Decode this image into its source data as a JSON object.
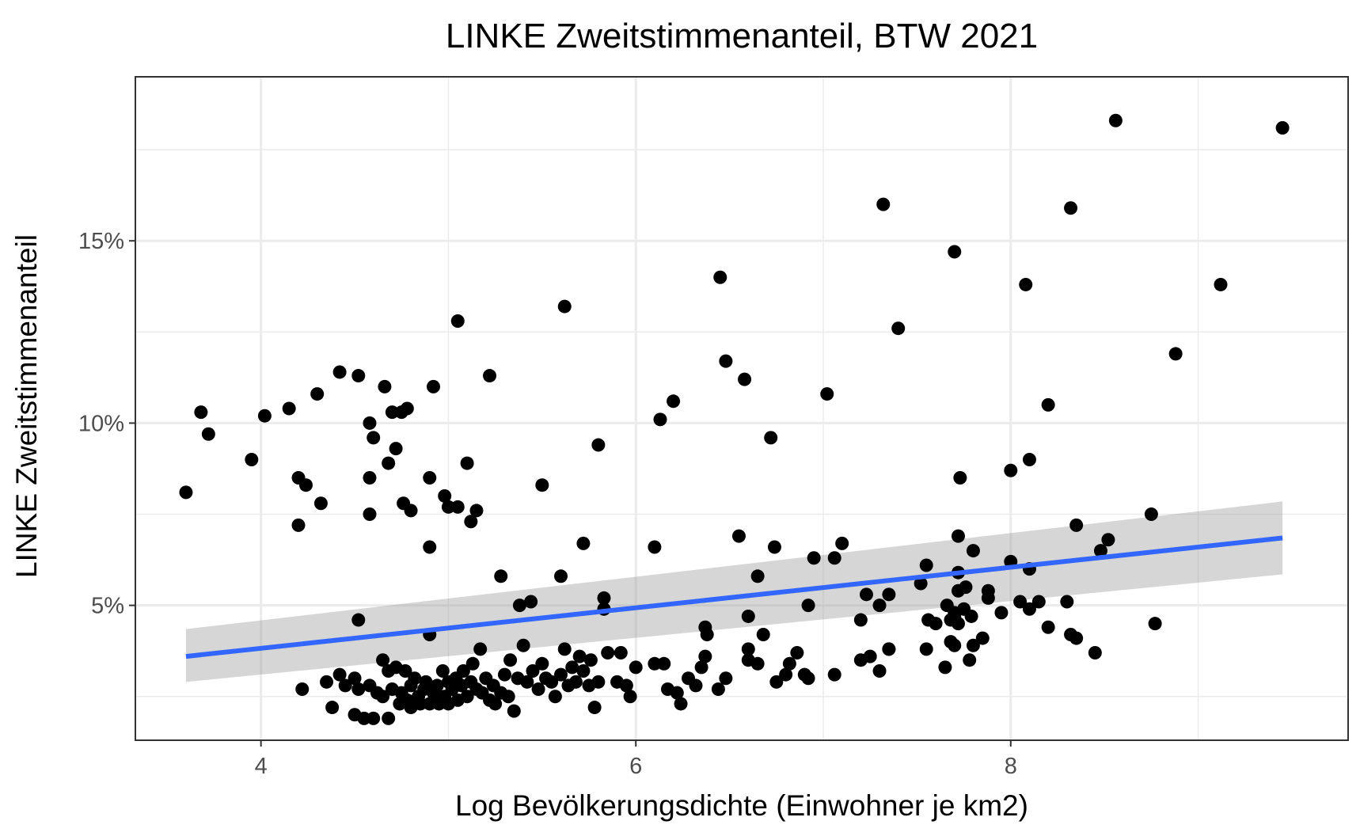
{
  "chart_data": {
    "type": "scatter",
    "title": "LINKE Zweitstimmenanteil, BTW 2021",
    "xlabel": "Log Bevölkerungsdichte (Einwohner je km2)",
    "ylabel": "LINKE Zweitstimmenanteil",
    "xlim": [
      3.33,
      9.8
    ],
    "ylim": [
      1.3,
      19.5
    ],
    "x_ticks": [
      4,
      6,
      8
    ],
    "x_tick_labels": [
      "4",
      "6",
      "8"
    ],
    "x_minor_ticks": [
      5,
      7,
      9
    ],
    "y_ticks": [
      5,
      10,
      15
    ],
    "y_tick_labels": [
      "5%",
      "10%",
      "15%"
    ],
    "y_minor_ticks": [
      2.5,
      7.5,
      12.5,
      17.5
    ],
    "grid": true,
    "legend": "none",
    "colors": {
      "points": "#000000",
      "trend_line": "#3366FF",
      "confidence_band": "#999999",
      "grid": "#ebebeb",
      "panel_border": "#333333"
    },
    "trend": {
      "method": "linear",
      "x": [
        3.6,
        9.45
      ],
      "y": [
        3.6,
        6.85
      ],
      "ci_lower": [
        2.9,
        5.85
      ],
      "ci_upper": [
        4.35,
        7.85
      ]
    },
    "points": [
      [
        3.6,
        8.1
      ],
      [
        3.68,
        10.3
      ],
      [
        3.72,
        9.7
      ],
      [
        3.95,
        9.0
      ],
      [
        4.02,
        10.2
      ],
      [
        4.15,
        10.4
      ],
      [
        4.2,
        8.5
      ],
      [
        4.24,
        8.3
      ],
      [
        4.2,
        7.2
      ],
      [
        4.3,
        10.8
      ],
      [
        4.32,
        7.8
      ],
      [
        4.42,
        11.4
      ],
      [
        4.52,
        11.3
      ],
      [
        4.58,
        10.0
      ],
      [
        4.6,
        9.6
      ],
      [
        4.58,
        8.5
      ],
      [
        4.58,
        7.5
      ],
      [
        4.66,
        11.0
      ],
      [
        4.68,
        8.9
      ],
      [
        4.7,
        10.3
      ],
      [
        4.72,
        9.3
      ],
      [
        4.75,
        10.3
      ],
      [
        4.78,
        10.4
      ],
      [
        4.76,
        7.8
      ],
      [
        4.8,
        7.6
      ],
      [
        4.92,
        11.0
      ],
      [
        4.9,
        8.5
      ],
      [
        4.9,
        6.6
      ],
      [
        4.98,
        8.0
      ],
      [
        5.0,
        7.7
      ],
      [
        5.05,
        12.8
      ],
      [
        5.05,
        7.7
      ],
      [
        5.1,
        8.9
      ],
      [
        5.12,
        7.3
      ],
      [
        5.15,
        7.6
      ],
      [
        5.22,
        11.3
      ],
      [
        5.28,
        5.8
      ],
      [
        5.5,
        8.3
      ],
      [
        5.62,
        13.2
      ],
      [
        5.6,
        5.8
      ],
      [
        5.72,
        6.7
      ],
      [
        5.8,
        9.4
      ],
      [
        5.83,
        5.2
      ],
      [
        5.83,
        4.9
      ],
      [
        6.1,
        6.6
      ],
      [
        6.13,
        10.1
      ],
      [
        6.2,
        10.6
      ],
      [
        6.45,
        14.0
      ],
      [
        6.48,
        11.7
      ],
      [
        6.55,
        6.9
      ],
      [
        6.58,
        11.2
      ],
      [
        6.6,
        4.7
      ],
      [
        6.65,
        5.8
      ],
      [
        6.72,
        9.6
      ],
      [
        6.74,
        6.6
      ],
      [
        6.92,
        5.0
      ],
      [
        6.95,
        6.3
      ],
      [
        7.02,
        10.8
      ],
      [
        7.06,
        6.3
      ],
      [
        7.1,
        6.7
      ],
      [
        7.2,
        4.6
      ],
      [
        7.23,
        5.3
      ],
      [
        7.3,
        5.0
      ],
      [
        7.32,
        16.0
      ],
      [
        7.35,
        5.3
      ],
      [
        7.4,
        12.6
      ],
      [
        7.52,
        5.6
      ],
      [
        7.55,
        6.1
      ],
      [
        7.56,
        4.6
      ],
      [
        7.6,
        4.5
      ],
      [
        7.66,
        5.0
      ],
      [
        7.7,
        14.7
      ],
      [
        7.72,
        6.9
      ],
      [
        7.73,
        8.5
      ],
      [
        7.72,
        5.9
      ],
      [
        7.72,
        5.4
      ],
      [
        7.76,
        5.5
      ],
      [
        7.8,
        6.5
      ],
      [
        7.75,
        4.9
      ],
      [
        7.79,
        4.7
      ],
      [
        7.88,
        5.4
      ],
      [
        7.88,
        5.2
      ],
      [
        7.95,
        4.8
      ],
      [
        8.0,
        8.7
      ],
      [
        8.0,
        6.2
      ],
      [
        8.05,
        5.1
      ],
      [
        8.08,
        13.8
      ],
      [
        8.1,
        9.0
      ],
      [
        8.1,
        6.0
      ],
      [
        8.1,
        4.9
      ],
      [
        8.15,
        5.1
      ],
      [
        8.2,
        10.5
      ],
      [
        8.2,
        4.4
      ],
      [
        8.3,
        5.1
      ],
      [
        8.32,
        15.9
      ],
      [
        8.35,
        7.2
      ],
      [
        8.32,
        4.2
      ],
      [
        8.35,
        4.1
      ],
      [
        8.45,
        3.7
      ],
      [
        8.48,
        6.5
      ],
      [
        8.52,
        6.8
      ],
      [
        8.56,
        18.3
      ],
      [
        8.75,
        7.5
      ],
      [
        8.77,
        4.5
      ],
      [
        8.88,
        11.9
      ],
      [
        9.12,
        13.8
      ],
      [
        9.45,
        18.1
      ],
      [
        4.22,
        2.7
      ],
      [
        4.35,
        2.9
      ],
      [
        4.38,
        2.2
      ],
      [
        4.42,
        3.1
      ],
      [
        4.45,
        2.8
      ],
      [
        4.5,
        3.0
      ],
      [
        4.5,
        2.0
      ],
      [
        4.52,
        2.7
      ],
      [
        4.52,
        4.6
      ],
      [
        4.55,
        1.9
      ],
      [
        4.58,
        2.8
      ],
      [
        4.6,
        1.9
      ],
      [
        4.62,
        2.6
      ],
      [
        4.65,
        3.5
      ],
      [
        4.65,
        2.5
      ],
      [
        4.68,
        3.2
      ],
      [
        4.68,
        1.9
      ],
      [
        4.7,
        2.7
      ],
      [
        4.72,
        3.3
      ],
      [
        4.74,
        2.3
      ],
      [
        4.75,
        2.6
      ],
      [
        4.77,
        3.2
      ],
      [
        4.78,
        2.4
      ],
      [
        4.8,
        2.8
      ],
      [
        4.8,
        2.2
      ],
      [
        4.82,
        3.0
      ],
      [
        4.84,
        2.5
      ],
      [
        4.85,
        2.3
      ],
      [
        4.87,
        2.7
      ],
      [
        4.88,
        2.9
      ],
      [
        4.9,
        2.3
      ],
      [
        4.9,
        4.2
      ],
      [
        4.92,
        2.6
      ],
      [
        4.94,
        2.8
      ],
      [
        4.95,
        2.3
      ],
      [
        4.97,
        3.2
      ],
      [
        4.98,
        2.5
      ],
      [
        5.0,
        2.9
      ],
      [
        5.0,
        2.3
      ],
      [
        5.02,
        2.7
      ],
      [
        5.04,
        3.0
      ],
      [
        5.05,
        2.4
      ],
      [
        5.07,
        2.8
      ],
      [
        5.08,
        3.2
      ],
      [
        5.1,
        2.5
      ],
      [
        5.12,
        2.9
      ],
      [
        5.13,
        3.4
      ],
      [
        5.15,
        2.7
      ],
      [
        5.17,
        3.8
      ],
      [
        5.18,
        2.6
      ],
      [
        5.2,
        3.0
      ],
      [
        5.22,
        2.4
      ],
      [
        5.24,
        2.8
      ],
      [
        5.25,
        2.3
      ],
      [
        5.28,
        2.6
      ],
      [
        5.3,
        3.1
      ],
      [
        5.32,
        2.5
      ],
      [
        5.33,
        3.5
      ],
      [
        5.35,
        2.1
      ],
      [
        5.37,
        3.0
      ],
      [
        5.38,
        5.0
      ],
      [
        5.4,
        3.9
      ],
      [
        5.42,
        2.9
      ],
      [
        5.44,
        5.1
      ],
      [
        5.45,
        3.2
      ],
      [
        5.48,
        2.7
      ],
      [
        5.5,
        3.4
      ],
      [
        5.52,
        3.0
      ],
      [
        5.55,
        2.9
      ],
      [
        5.57,
        2.5
      ],
      [
        5.6,
        3.1
      ],
      [
        5.62,
        3.8
      ],
      [
        5.64,
        2.8
      ],
      [
        5.66,
        3.3
      ],
      [
        5.68,
        2.9
      ],
      [
        5.7,
        3.6
      ],
      [
        5.72,
        3.2
      ],
      [
        5.75,
        2.8
      ],
      [
        5.76,
        3.5
      ],
      [
        5.78,
        2.2
      ],
      [
        5.8,
        2.9
      ],
      [
        5.85,
        3.7
      ],
      [
        5.9,
        2.9
      ],
      [
        5.92,
        3.7
      ],
      [
        5.95,
        2.8
      ],
      [
        5.97,
        2.5
      ],
      [
        6.0,
        3.3
      ],
      [
        6.1,
        3.4
      ],
      [
        6.15,
        3.4
      ],
      [
        6.17,
        2.7
      ],
      [
        6.22,
        2.6
      ],
      [
        6.24,
        2.3
      ],
      [
        6.28,
        3.0
      ],
      [
        6.32,
        2.8
      ],
      [
        6.35,
        3.3
      ],
      [
        6.37,
        3.6
      ],
      [
        6.37,
        4.4
      ],
      [
        6.38,
        4.2
      ],
      [
        6.44,
        2.7
      ],
      [
        6.48,
        3.0
      ],
      [
        6.6,
        3.8
      ],
      [
        6.6,
        3.5
      ],
      [
        6.65,
        3.4
      ],
      [
        6.68,
        4.2
      ],
      [
        6.75,
        2.9
      ],
      [
        6.8,
        3.1
      ],
      [
        6.82,
        3.4
      ],
      [
        6.86,
        3.7
      ],
      [
        6.9,
        3.1
      ],
      [
        6.92,
        3.0
      ],
      [
        7.06,
        3.1
      ],
      [
        7.2,
        3.5
      ],
      [
        7.25,
        3.6
      ],
      [
        7.3,
        3.2
      ],
      [
        7.35,
        3.8
      ],
      [
        7.35,
        3.8
      ],
      [
        7.55,
        3.8
      ],
      [
        7.65,
        3.3
      ],
      [
        7.68,
        4.0
      ],
      [
        7.7,
        3.9
      ],
      [
        7.78,
        3.5
      ],
      [
        7.8,
        3.9
      ],
      [
        7.85,
        4.1
      ],
      [
        7.68,
        4.6
      ],
      [
        7.7,
        4.7
      ],
      [
        7.72,
        4.5
      ],
      [
        7.7,
        4.8
      ]
    ]
  }
}
